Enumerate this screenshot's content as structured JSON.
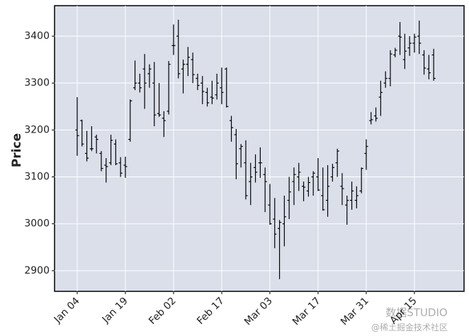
{
  "chart_data": {
    "type": "ohlc",
    "ylabel": "Price",
    "categories": [
      "Jan 04",
      null,
      null,
      null,
      null,
      null,
      null,
      null,
      null,
      null,
      "Jan 19",
      null,
      null,
      null,
      null,
      null,
      null,
      null,
      null,
      null,
      "Feb 02",
      null,
      null,
      null,
      null,
      null,
      null,
      null,
      null,
      null,
      "Feb 17",
      null,
      null,
      null,
      null,
      null,
      null,
      null,
      null,
      null,
      "Mar 03",
      null,
      null,
      null,
      null,
      null,
      null,
      null,
      null,
      null,
      "Mar 17",
      null,
      null,
      null,
      null,
      null,
      null,
      null,
      null,
      null,
      "Mar 31",
      null,
      null,
      null,
      null,
      null,
      null,
      null,
      null,
      null,
      "Apr 15",
      null,
      null,
      null,
      null
    ],
    "open": [
      3200,
      3220,
      3150,
      3160,
      3185,
      3150,
      3125,
      3130,
      3170,
      3130,
      3125,
      3180,
      3290,
      3300,
      3330,
      3320,
      3300,
      3235,
      3225,
      3240,
      3380,
      3400,
      3330,
      3340,
      3350,
      3310,
      3300,
      3280,
      3270,
      3275,
      3290,
      3330,
      3220,
      3190,
      3160,
      3130,
      3090,
      3120,
      3130,
      3105,
      3040,
      3010,
      2990,
      3000,
      3050,
      3090,
      3100,
      3080,
      3070,
      3100,
      3100,
      3060,
      3050,
      3100,
      3130,
      3080,
      3040,
      3050,
      3050,
      3070,
      3150,
      3220,
      3230,
      3270,
      3300,
      3310,
      3360,
      3400,
      3350,
      3375,
      3385,
      3400,
      3360,
      3330,
      3360
    ],
    "high": [
      3270,
      3222,
      3198,
      3208,
      3190,
      3155,
      3140,
      3190,
      3180,
      3142,
      3143,
      3265,
      3348,
      3320,
      3362,
      3340,
      3345,
      3300,
      3240,
      3347,
      3425,
      3435,
      3350,
      3377,
      3365,
      3320,
      3315,
      3290,
      3305,
      3320,
      3333,
      3333,
      3230,
      3202,
      3170,
      3178,
      3130,
      3148,
      3163,
      3120,
      3085,
      3055,
      3008,
      3060,
      3100,
      3120,
      3130,
      3090,
      3100,
      3112,
      3140,
      3120,
      3125,
      3128,
      3160,
      3108,
      3060,
      3090,
      3080,
      3120,
      3180,
      3238,
      3248,
      3305,
      3325,
      3370,
      3375,
      3430,
      3405,
      3400,
      3405,
      3433,
      3370,
      3360,
      3373
    ],
    "low": [
      3145,
      3165,
      3133,
      3155,
      3150,
      3112,
      3088,
      3125,
      3125,
      3100,
      3098,
      3175,
      3285,
      3280,
      3245,
      3290,
      3208,
      3228,
      3185,
      3233,
      3360,
      3310,
      3278,
      3315,
      3300,
      3285,
      3255,
      3250,
      3255,
      3265,
      3255,
      3248,
      3175,
      3095,
      3120,
      3052,
      3040,
      3088,
      3098,
      3025,
      2998,
      2948,
      2882,
      2952,
      3010,
      3040,
      3070,
      3048,
      3058,
      3060,
      3070,
      3028,
      3015,
      3090,
      3100,
      3040,
      2998,
      3030,
      3033,
      3065,
      3115,
      3212,
      3218,
      3230,
      3290,
      3293,
      3355,
      3360,
      3330,
      3358,
      3365,
      3362,
      3318,
      3308,
      3305
    ],
    "close": [
      3188,
      3170,
      3140,
      3160,
      3180,
      3118,
      3122,
      3178,
      3128,
      3108,
      3122,
      3262,
      3300,
      3290,
      3300,
      3330,
      3232,
      3232,
      3220,
      3340,
      3380,
      3320,
      3340,
      3355,
      3318,
      3295,
      3282,
      3258,
      3268,
      3300,
      3280,
      3250,
      3205,
      3128,
      3165,
      3060,
      3100,
      3110,
      3130,
      3090,
      3000,
      2978,
      3003,
      3015,
      3068,
      3105,
      3110,
      3078,
      3088,
      3108,
      3072,
      3030,
      3080,
      3120,
      3155,
      3075,
      3050,
      3070,
      3060,
      3118,
      3165,
      3222,
      3225,
      3280,
      3310,
      3362,
      3370,
      3398,
      3368,
      3385,
      3398,
      3385,
      3332,
      3322,
      3310
    ],
    "color": "#000000",
    "ylim": [
      2856,
      3465
    ],
    "yticks": [
      2900,
      3000,
      3100,
      3200,
      3300,
      3400
    ],
    "grid": true,
    "watermark": [
      "数据STUDIO",
      "@稀土掘金技术社区"
    ]
  }
}
